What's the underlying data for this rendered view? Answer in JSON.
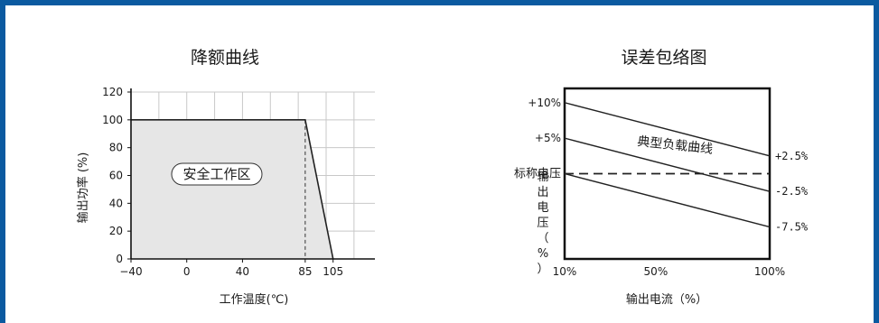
{
  "chart_data": [
    {
      "type": "area",
      "title": "降额曲线",
      "xlabel": "工作温度(℃)",
      "ylabel": "输出功率 (%)",
      "xlim": [
        -40,
        135
      ],
      "ylim": [
        0,
        120
      ],
      "x_ticks": [
        "−40",
        "0",
        "40",
        "85",
        "105"
      ],
      "x_tick_values": [
        -40,
        0,
        40,
        85,
        105
      ],
      "y_ticks": [
        "0",
        "20",
        "40",
        "60",
        "80",
        "100",
        "120"
      ],
      "y_tick_values": [
        0,
        20,
        40,
        60,
        80,
        100,
        120
      ],
      "grid": true,
      "series": [
        {
          "x": [
            -40,
            85,
            105
          ],
          "y": [
            100,
            100,
            0
          ]
        }
      ],
      "region_label": "安全工作区",
      "reference_line_x": 85
    },
    {
      "type": "line",
      "title": "误差包络图",
      "xlabel": "输出电流（%）",
      "ylabel": "输出电压（%）",
      "x_ticks": [
        "10%",
        "50%",
        "100%"
      ],
      "x_tick_values": [
        10,
        50,
        100
      ],
      "ylim": [
        -12,
        12
      ],
      "left_labels": [
        {
          "text": "+10%",
          "y": 10
        },
        {
          "text": "+5%",
          "y": 5
        },
        {
          "text": "标称电压",
          "y": 0
        }
      ],
      "right_labels": [
        {
          "text": "+2.5%",
          "y": 2.5
        },
        {
          "text": "-2.5%",
          "y": -2.5
        },
        {
          "text": "-7.5%",
          "y": -7.5
        }
      ],
      "series": [
        {
          "x": [
            10,
            100
          ],
          "y": [
            10,
            2.5
          ]
        },
        {
          "x": [
            10,
            100
          ],
          "y": [
            5,
            -2.5
          ]
        },
        {
          "x": [
            10,
            100
          ],
          "y": [
            0,
            -7.5
          ]
        }
      ],
      "nominal_line_y": 0,
      "annotation": "典型负载曲线"
    }
  ]
}
